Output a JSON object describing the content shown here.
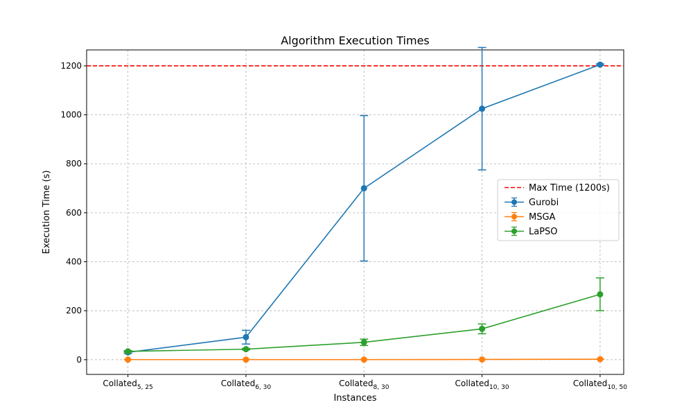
{
  "chart_data": {
    "type": "line",
    "title": "Algorithm Execution Times",
    "xlabel": "Instances",
    "ylabel": "Execution Time (s)",
    "categories": [
      {
        "base": "Collated",
        "sub": "5, 25"
      },
      {
        "base": "Collated",
        "sub": "6, 30"
      },
      {
        "base": "Collated",
        "sub": "8, 30"
      },
      {
        "base": "Collated",
        "sub": "10, 30"
      },
      {
        "base": "Collated",
        "sub": "10, 50"
      }
    ],
    "ylim": [
      -60,
      1265
    ],
    "yticks": [
      0,
      200,
      400,
      600,
      800,
      1000,
      1200
    ],
    "grid": true,
    "legend_position": "center-right",
    "reference_line": {
      "name": "Max Time (1200s)",
      "value": 1200,
      "color": "#ff0000",
      "style": "dashed"
    },
    "series": [
      {
        "name": "Gurobi",
        "color": "#1f77b4",
        "values": [
          30,
          92,
          700,
          1025,
          1205
        ],
        "errors": [
          5,
          28,
          297,
          250,
          3
        ]
      },
      {
        "name": "MSGA",
        "color": "#ff7f0e",
        "values": [
          0.5,
          0.5,
          0.5,
          1,
          2
        ],
        "errors": [
          0.2,
          0.2,
          0.2,
          0.3,
          0.5
        ]
      },
      {
        "name": "LaPSO",
        "color": "#2ca02c",
        "values": [
          34,
          43,
          71,
          126,
          267
        ],
        "errors": [
          3,
          3,
          13,
          20,
          67
        ]
      }
    ]
  }
}
